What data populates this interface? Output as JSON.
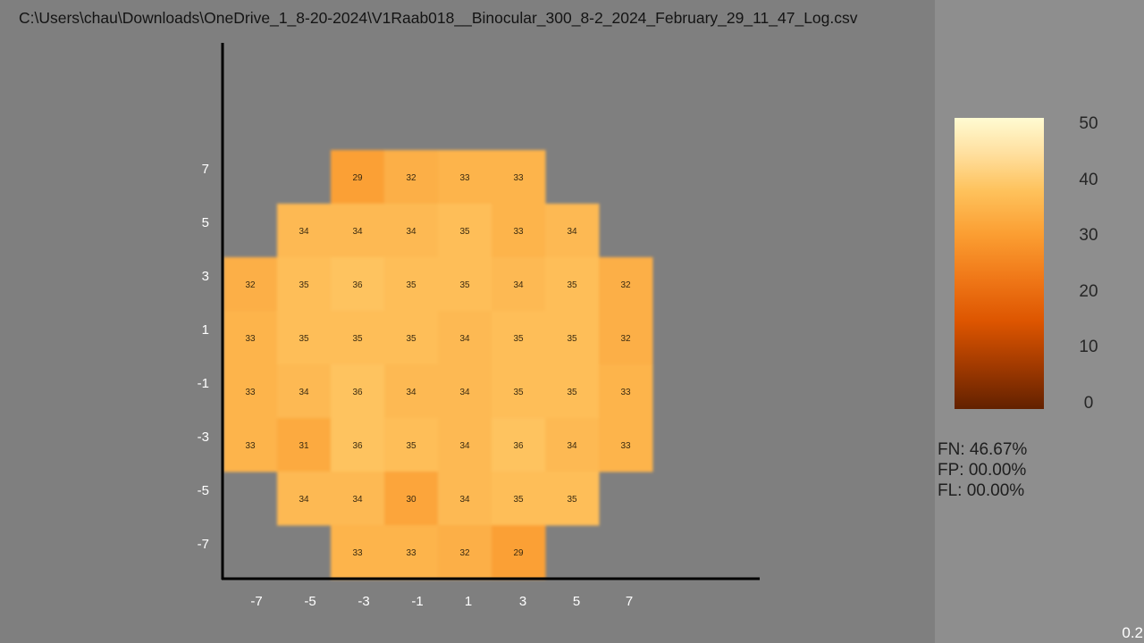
{
  "window": {
    "file_path": "C:\\Users\\chau\\Downloads\\OneDrive_1_8-20-2024\\V1Raab018__Binocular_300_8-2_2024_February_29_11_47_Log.csv"
  },
  "chart_data": {
    "type": "heatmap",
    "title": "",
    "xlabel": "",
    "ylabel": "",
    "x_ticks": [
      "-7",
      "-5",
      "-3",
      "-1",
      "1",
      "3",
      "5",
      "7"
    ],
    "y_ticks": [
      "7",
      "5",
      "3",
      "1",
      "-1",
      "-3",
      "-5",
      "-7"
    ],
    "x_positions": [
      -7,
      -5,
      -3,
      -1,
      1,
      3,
      5,
      7
    ],
    "y_positions": [
      7,
      5,
      3,
      1,
      -1,
      -3,
      -5,
      -7
    ],
    "values": [
      [
        null,
        null,
        29,
        32,
        33,
        33,
        null,
        null
      ],
      [
        null,
        34,
        34,
        34,
        35,
        33,
        34,
        null
      ],
      [
        32,
        35,
        36,
        35,
        35,
        34,
        35,
        32
      ],
      [
        33,
        35,
        35,
        35,
        34,
        35,
        35,
        32
      ],
      [
        33,
        34,
        36,
        34,
        34,
        35,
        35,
        33
      ],
      [
        33,
        31,
        36,
        35,
        34,
        36,
        34,
        33
      ],
      [
        null,
        34,
        34,
        30,
        34,
        35,
        35,
        null
      ],
      [
        null,
        null,
        33,
        33,
        32,
        29,
        null,
        null
      ]
    ],
    "colorbar": {
      "range": [
        0,
        50
      ],
      "ticks": [
        "50",
        "40",
        "30",
        "20",
        "10",
        "0"
      ],
      "colormap": "afmhot",
      "colors": [
        "#622100",
        "#a23a00",
        "#dd5500",
        "#f07818",
        "#fb9e32",
        "#fec25c",
        "#ffe0a0",
        "#fffbd2"
      ]
    }
  },
  "stats": {
    "fn": "FN: 46.67%",
    "fp": "FP: 00.00%",
    "fl": "FL: 00.00%"
  },
  "version": "0.2"
}
